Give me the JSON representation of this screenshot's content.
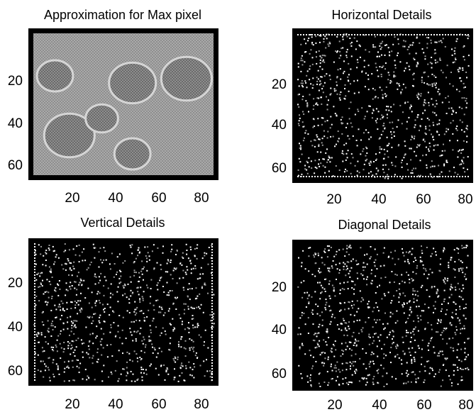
{
  "figure": {
    "panels": [
      {
        "title": "Approximation for Max pixel",
        "xticks": [
          "20",
          "40",
          "60",
          "80"
        ],
        "yticks": [
          "20",
          "40",
          "60"
        ],
        "kind": "approximation",
        "x_range": [
          1,
          88
        ],
        "y_range": [
          1,
          68
        ]
      },
      {
        "title": "Horizontal Details",
        "xticks": [
          "20",
          "40",
          "60",
          "80"
        ],
        "yticks": [
          "20",
          "40",
          "60"
        ],
        "kind": "horizontal",
        "x_range": [
          1,
          88
        ],
        "y_range": [
          1,
          68
        ]
      },
      {
        "title": "Vertical Details",
        "xticks": [
          "20",
          "40",
          "60",
          "80"
        ],
        "yticks": [
          "20",
          "40",
          "60"
        ],
        "kind": "vertical",
        "x_range": [
          1,
          88
        ],
        "y_range": [
          1,
          68
        ]
      },
      {
        "title": "Diagonal Details",
        "xticks": [
          "20",
          "40",
          "60",
          "80"
        ],
        "yticks": [
          "20",
          "40",
          "60"
        ],
        "kind": "diagonal",
        "x_range": [
          1,
          88
        ],
        "y_range": [
          1,
          68
        ]
      }
    ],
    "colors": {
      "frame": "#000000",
      "approx_bg": "#8e8e8e",
      "approx_light": "#cfcfcf",
      "approx_blob": "#6a6a6a",
      "detail_bg": "#000000",
      "detail_speck": "#ffffff",
      "detail_speck_dim": "#9a9a9a"
    }
  }
}
